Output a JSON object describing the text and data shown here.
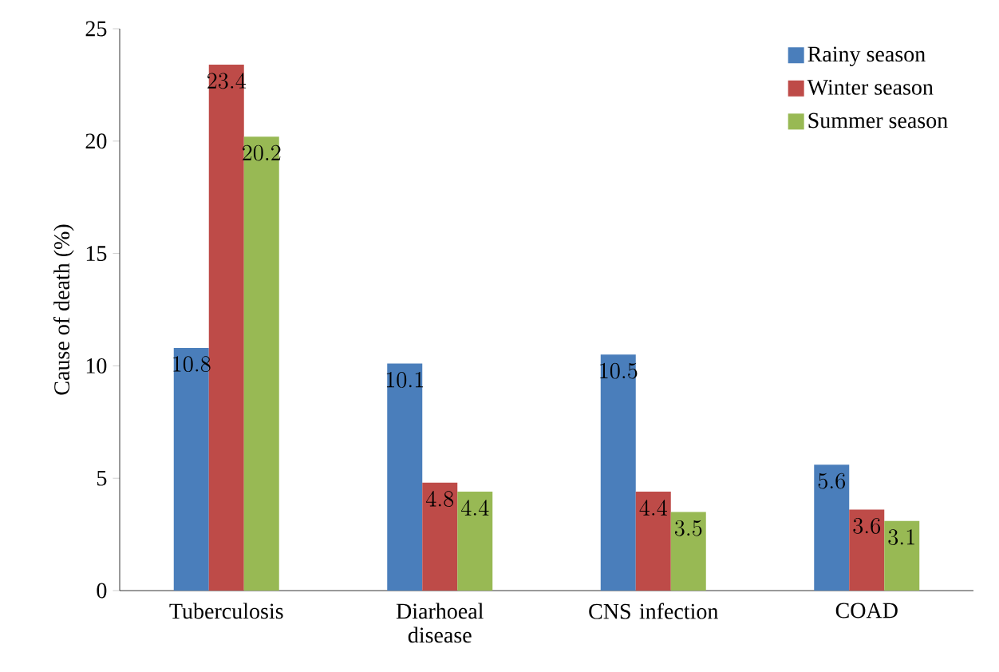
{
  "chart_data": {
    "type": "bar",
    "ylabel": "Cause of death (%)",
    "categories": [
      "Tuberculosis",
      "Diarhoeal disease",
      "CNS infection",
      "COAD"
    ],
    "series": [
      {
        "name": "Rainy season",
        "color": "#4a7ebb",
        "values": [
          10.8,
          10.1,
          10.5,
          5.6
        ]
      },
      {
        "name": "Winter season",
        "color": "#be4b48",
        "values": [
          23.4,
          4.8,
          4.4,
          3.6
        ]
      },
      {
        "name": "Summer season",
        "color": "#98b954",
        "values": [
          20.2,
          4.4,
          3.5,
          3.1
        ]
      }
    ],
    "ylim": [
      0,
      25
    ],
    "yticks": [
      0,
      5,
      10,
      15,
      20,
      25
    ],
    "data_labels": true,
    "legend": "top right",
    "grid": false
  }
}
